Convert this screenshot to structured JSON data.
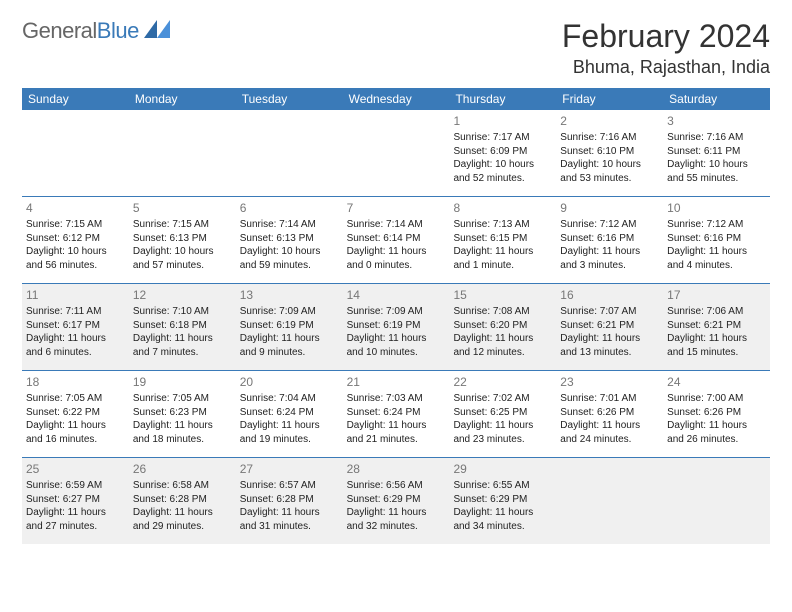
{
  "logo": {
    "part1": "General",
    "part2": "Blue"
  },
  "title": "February 2024",
  "location": "Bhuma, Rajasthan, India",
  "colors": {
    "header_bg": "#3a7ab8",
    "header_text": "#ffffff",
    "border": "#3a7ab8",
    "shaded_bg": "#f0f0f0",
    "day_num": "#777777",
    "text": "#222222",
    "title_text": "#333333"
  },
  "typography": {
    "title_fontsize": 32,
    "location_fontsize": 18,
    "header_fontsize": 12,
    "daynum_fontsize": 12,
    "body_fontsize": 10
  },
  "weekdays": [
    "Sunday",
    "Monday",
    "Tuesday",
    "Wednesday",
    "Thursday",
    "Friday",
    "Saturday"
  ],
  "weeks": [
    [
      null,
      null,
      null,
      null,
      {
        "n": "1",
        "sunrise": "Sunrise: 7:17 AM",
        "sunset": "Sunset: 6:09 PM",
        "dl1": "Daylight: 10 hours",
        "dl2": "and 52 minutes."
      },
      {
        "n": "2",
        "sunrise": "Sunrise: 7:16 AM",
        "sunset": "Sunset: 6:10 PM",
        "dl1": "Daylight: 10 hours",
        "dl2": "and 53 minutes."
      },
      {
        "n": "3",
        "sunrise": "Sunrise: 7:16 AM",
        "sunset": "Sunset: 6:11 PM",
        "dl1": "Daylight: 10 hours",
        "dl2": "and 55 minutes."
      }
    ],
    [
      {
        "n": "4",
        "sunrise": "Sunrise: 7:15 AM",
        "sunset": "Sunset: 6:12 PM",
        "dl1": "Daylight: 10 hours",
        "dl2": "and 56 minutes."
      },
      {
        "n": "5",
        "sunrise": "Sunrise: 7:15 AM",
        "sunset": "Sunset: 6:13 PM",
        "dl1": "Daylight: 10 hours",
        "dl2": "and 57 minutes."
      },
      {
        "n": "6",
        "sunrise": "Sunrise: 7:14 AM",
        "sunset": "Sunset: 6:13 PM",
        "dl1": "Daylight: 10 hours",
        "dl2": "and 59 minutes."
      },
      {
        "n": "7",
        "sunrise": "Sunrise: 7:14 AM",
        "sunset": "Sunset: 6:14 PM",
        "dl1": "Daylight: 11 hours",
        "dl2": "and 0 minutes."
      },
      {
        "n": "8",
        "sunrise": "Sunrise: 7:13 AM",
        "sunset": "Sunset: 6:15 PM",
        "dl1": "Daylight: 11 hours",
        "dl2": "and 1 minute."
      },
      {
        "n": "9",
        "sunrise": "Sunrise: 7:12 AM",
        "sunset": "Sunset: 6:16 PM",
        "dl1": "Daylight: 11 hours",
        "dl2": "and 3 minutes."
      },
      {
        "n": "10",
        "sunrise": "Sunrise: 7:12 AM",
        "sunset": "Sunset: 6:16 PM",
        "dl1": "Daylight: 11 hours",
        "dl2": "and 4 minutes."
      }
    ],
    [
      {
        "n": "11",
        "sunrise": "Sunrise: 7:11 AM",
        "sunset": "Sunset: 6:17 PM",
        "dl1": "Daylight: 11 hours",
        "dl2": "and 6 minutes."
      },
      {
        "n": "12",
        "sunrise": "Sunrise: 7:10 AM",
        "sunset": "Sunset: 6:18 PM",
        "dl1": "Daylight: 11 hours",
        "dl2": "and 7 minutes."
      },
      {
        "n": "13",
        "sunrise": "Sunrise: 7:09 AM",
        "sunset": "Sunset: 6:19 PM",
        "dl1": "Daylight: 11 hours",
        "dl2": "and 9 minutes."
      },
      {
        "n": "14",
        "sunrise": "Sunrise: 7:09 AM",
        "sunset": "Sunset: 6:19 PM",
        "dl1": "Daylight: 11 hours",
        "dl2": "and 10 minutes."
      },
      {
        "n": "15",
        "sunrise": "Sunrise: 7:08 AM",
        "sunset": "Sunset: 6:20 PM",
        "dl1": "Daylight: 11 hours",
        "dl2": "and 12 minutes."
      },
      {
        "n": "16",
        "sunrise": "Sunrise: 7:07 AM",
        "sunset": "Sunset: 6:21 PM",
        "dl1": "Daylight: 11 hours",
        "dl2": "and 13 minutes."
      },
      {
        "n": "17",
        "sunrise": "Sunrise: 7:06 AM",
        "sunset": "Sunset: 6:21 PM",
        "dl1": "Daylight: 11 hours",
        "dl2": "and 15 minutes."
      }
    ],
    [
      {
        "n": "18",
        "sunrise": "Sunrise: 7:05 AM",
        "sunset": "Sunset: 6:22 PM",
        "dl1": "Daylight: 11 hours",
        "dl2": "and 16 minutes."
      },
      {
        "n": "19",
        "sunrise": "Sunrise: 7:05 AM",
        "sunset": "Sunset: 6:23 PM",
        "dl1": "Daylight: 11 hours",
        "dl2": "and 18 minutes."
      },
      {
        "n": "20",
        "sunrise": "Sunrise: 7:04 AM",
        "sunset": "Sunset: 6:24 PM",
        "dl1": "Daylight: 11 hours",
        "dl2": "and 19 minutes."
      },
      {
        "n": "21",
        "sunrise": "Sunrise: 7:03 AM",
        "sunset": "Sunset: 6:24 PM",
        "dl1": "Daylight: 11 hours",
        "dl2": "and 21 minutes."
      },
      {
        "n": "22",
        "sunrise": "Sunrise: 7:02 AM",
        "sunset": "Sunset: 6:25 PM",
        "dl1": "Daylight: 11 hours",
        "dl2": "and 23 minutes."
      },
      {
        "n": "23",
        "sunrise": "Sunrise: 7:01 AM",
        "sunset": "Sunset: 6:26 PM",
        "dl1": "Daylight: 11 hours",
        "dl2": "and 24 minutes."
      },
      {
        "n": "24",
        "sunrise": "Sunrise: 7:00 AM",
        "sunset": "Sunset: 6:26 PM",
        "dl1": "Daylight: 11 hours",
        "dl2": "and 26 minutes."
      }
    ],
    [
      {
        "n": "25",
        "sunrise": "Sunrise: 6:59 AM",
        "sunset": "Sunset: 6:27 PM",
        "dl1": "Daylight: 11 hours",
        "dl2": "and 27 minutes."
      },
      {
        "n": "26",
        "sunrise": "Sunrise: 6:58 AM",
        "sunset": "Sunset: 6:28 PM",
        "dl1": "Daylight: 11 hours",
        "dl2": "and 29 minutes."
      },
      {
        "n": "27",
        "sunrise": "Sunrise: 6:57 AM",
        "sunset": "Sunset: 6:28 PM",
        "dl1": "Daylight: 11 hours",
        "dl2": "and 31 minutes."
      },
      {
        "n": "28",
        "sunrise": "Sunrise: 6:56 AM",
        "sunset": "Sunset: 6:29 PM",
        "dl1": "Daylight: 11 hours",
        "dl2": "and 32 minutes."
      },
      {
        "n": "29",
        "sunrise": "Sunrise: 6:55 AM",
        "sunset": "Sunset: 6:29 PM",
        "dl1": "Daylight: 11 hours",
        "dl2": "and 34 minutes."
      },
      null,
      null
    ]
  ],
  "shaded_weeks": [
    2,
    4
  ]
}
